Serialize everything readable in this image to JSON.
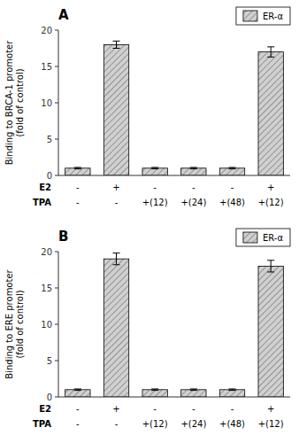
{
  "chart_data": [
    {
      "type": "bar",
      "title": "A",
      "ylabel": "Binding to BRCA-1 promoter\n(fold of control)",
      "category_labels": [
        "E2",
        "TPA"
      ],
      "categories": [
        [
          "-",
          "-"
        ],
        [
          "+",
          "-"
        ],
        [
          "-",
          "+(12)"
        ],
        [
          "-",
          "+(24)"
        ],
        [
          "-",
          "+(48)"
        ],
        [
          "+",
          "+(12)"
        ]
      ],
      "series": [
        {
          "name": "ER-α",
          "color": "#d0d0d0",
          "values": [
            1.0,
            18.0,
            1.0,
            1.0,
            1.0,
            17.0
          ],
          "errors": [
            0.1,
            0.5,
            0.1,
            0.1,
            0.1,
            0.7
          ]
        }
      ],
      "ylim": [
        0,
        20
      ],
      "yticks": [
        0,
        5,
        10,
        15,
        20
      ],
      "grid": false,
      "legend": "upper right"
    },
    {
      "type": "bar",
      "title": "B",
      "ylabel": "Binding to ERE promoter\n(fold of control)",
      "category_labels": [
        "E2",
        "TPA"
      ],
      "categories": [
        [
          "-",
          "-"
        ],
        [
          "+",
          "-"
        ],
        [
          "-",
          "+(12)"
        ],
        [
          "-",
          "+(24)"
        ],
        [
          "-",
          "+(48)"
        ],
        [
          "+",
          "+(12)"
        ]
      ],
      "series": [
        {
          "name": "ER-α",
          "color": "#d0d0d0",
          "values": [
            1.0,
            19.0,
            1.0,
            1.0,
            1.0,
            18.0
          ],
          "errors": [
            0.1,
            0.8,
            0.1,
            0.1,
            0.1,
            0.8
          ]
        }
      ],
      "ylim": [
        0,
        20
      ],
      "yticks": [
        0,
        5,
        10,
        15,
        20
      ],
      "grid": false,
      "legend": "upper right"
    }
  ]
}
